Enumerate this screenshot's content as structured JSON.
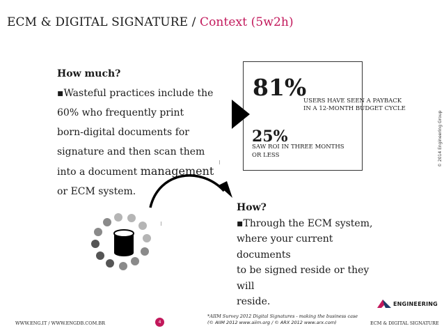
{
  "title": {
    "main": "ECM & DIGITAL SIGNATURE / ",
    "context": "Context (5w2h)"
  },
  "how_much": {
    "heading": "How much?",
    "line1": "▪Wasteful practices include the",
    "line2": "60% who frequently print",
    "line3": "born-digital documents for",
    "line4": "signature and then scan them",
    "line5_a": "into a document ",
    "line5_b": "management",
    "line6": "or ECM system."
  },
  "stats": {
    "pct1": "81%",
    "cap1_line1": "USERS HAVE SEEN A PAYBACK",
    "cap1_line2": "IN A 12-MONTH BUDGET CYCLE",
    "pct2": "25%",
    "cap2_line1": "SAW ROI IN THREE MONTHS",
    "cap2_line2": "OR LESS"
  },
  "how": {
    "heading": "How?",
    "line1": "▪Through the ECM system,",
    "line2": "where your current documents",
    "line3": "to be signed reside or they will",
    "line4": "reside."
  },
  "copyright": "© 2014 Engineering Group",
  "logo_text": "ENGINEERING",
  "footer": {
    "left": "WWW.ENG.IT / WWW.ENGDB.COM.BR",
    "page_number": "4",
    "source_line1": "*AIIM Survey 2012 Digital Signatures - making the business case",
    "source_line2": "(© AIIM 2012 www.aiim.org / © ARX 2012 www.arx.com)",
    "right": "ECM & DIGITAL SIGNATURE"
  },
  "colors": {
    "accent": "#c2185b",
    "dot_dark": "#555555",
    "dot_mid": "#8a8a8a",
    "dot_light": "#b5b5b5"
  },
  "icons": {
    "arrowhead": "triangle-right-icon",
    "curved_arrow": "curved-arrow-icon",
    "database": "database-cylinder-icon",
    "spinner": "loading-dots-icon"
  }
}
